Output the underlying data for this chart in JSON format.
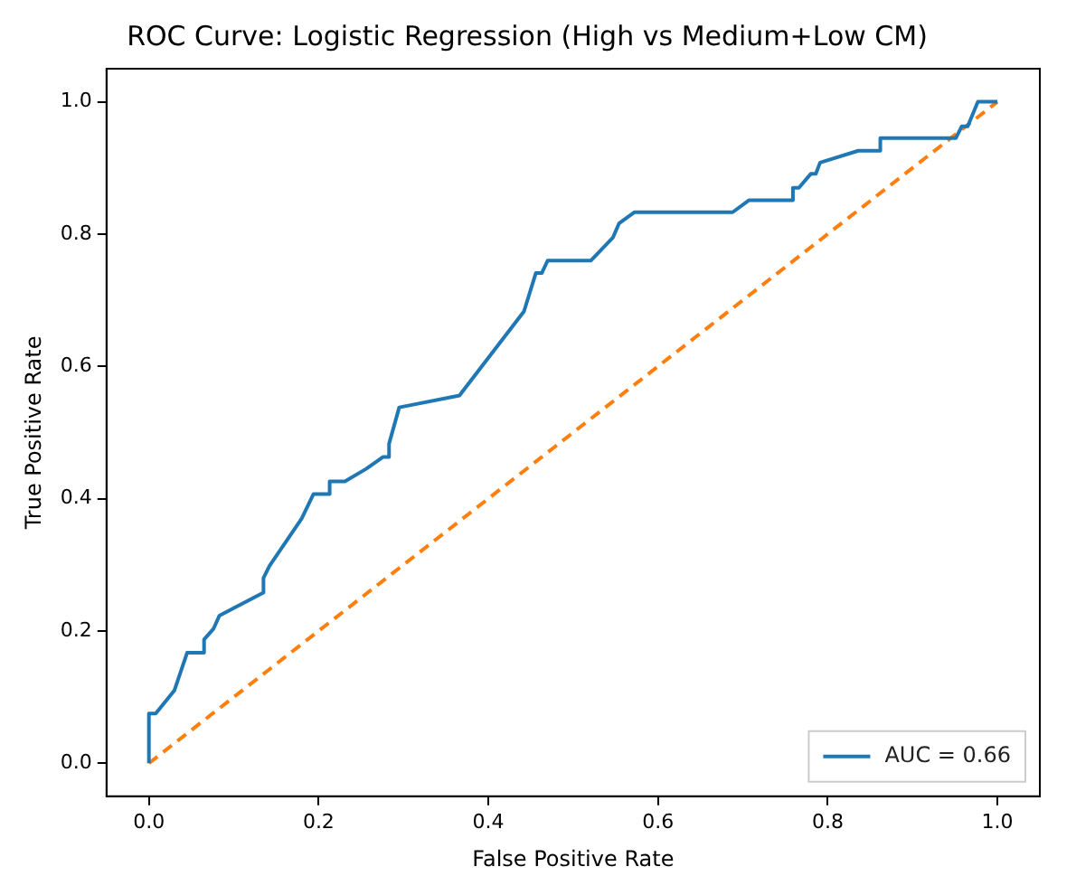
{
  "chart_data": {
    "type": "line",
    "title": "ROC Curve: Logistic Regression (High vs Medium+Low CM)",
    "xlabel": "False Positive Rate",
    "ylabel": "True Positive Rate",
    "series": [
      {
        "name": "AUC = 0.66",
        "color": "#1f77b4",
        "line_style": "solid",
        "x": [
          0,
          0,
          0.008,
          0.03,
          0.045,
          0.065,
          0.065,
          0.076,
          0.083,
          0.135,
          0.135,
          0.142,
          0.18,
          0.194,
          0.213,
          0.213,
          0.231,
          0.256,
          0.276,
          0.283,
          0.283,
          0.295,
          0.366,
          0.442,
          0.456,
          0.463,
          0.47,
          0.521,
          0.547,
          0.554,
          0.572,
          0.688,
          0.707,
          0.759,
          0.759,
          0.766,
          0.78,
          0.786,
          0.791,
          0.836,
          0.862,
          0.862,
          0.951,
          0.958,
          0.965,
          0.977,
          1.0
        ],
        "values": [
          0,
          0.075,
          0.075,
          0.11,
          0.167,
          0.167,
          0.187,
          0.203,
          0.223,
          0.258,
          0.28,
          0.298,
          0.37,
          0.407,
          0.407,
          0.426,
          0.426,
          0.445,
          0.463,
          0.463,
          0.483,
          0.538,
          0.556,
          0.683,
          0.741,
          0.741,
          0.76,
          0.76,
          0.795,
          0.816,
          0.833,
          0.833,
          0.851,
          0.851,
          0.87,
          0.87,
          0.891,
          0.891,
          0.908,
          0.926,
          0.926,
          0.945,
          0.945,
          0.963,
          0.963,
          1.0,
          1.0
        ]
      },
      {
        "color": "#ff7f0e",
        "line_style": "dashed",
        "x": [
          0,
          1
        ],
        "values": [
          0,
          1
        ]
      }
    ],
    "xlim": [
      -0.05,
      1.05
    ],
    "ylim": [
      -0.05,
      1.05
    ],
    "xticks": [
      {
        "value": 0,
        "label": "0.0"
      },
      {
        "value": 0.2,
        "label": "0.2"
      },
      {
        "value": 0.4,
        "label": "0.4"
      },
      {
        "value": 0.6,
        "label": "0.6"
      },
      {
        "value": 0.8,
        "label": "0.8"
      },
      {
        "value": 1,
        "label": "1.0"
      }
    ],
    "yticks": [
      {
        "value": 0,
        "label": "0.0"
      },
      {
        "value": 0.2,
        "label": "0.2"
      },
      {
        "value": 0.4,
        "label": "0.4"
      },
      {
        "value": 0.6,
        "label": "0.6"
      },
      {
        "value": 0.8,
        "label": "0.8"
      },
      {
        "value": 1,
        "label": "1.0"
      }
    ],
    "grid": false,
    "legend": "bottom right",
    "marker": "none"
  }
}
